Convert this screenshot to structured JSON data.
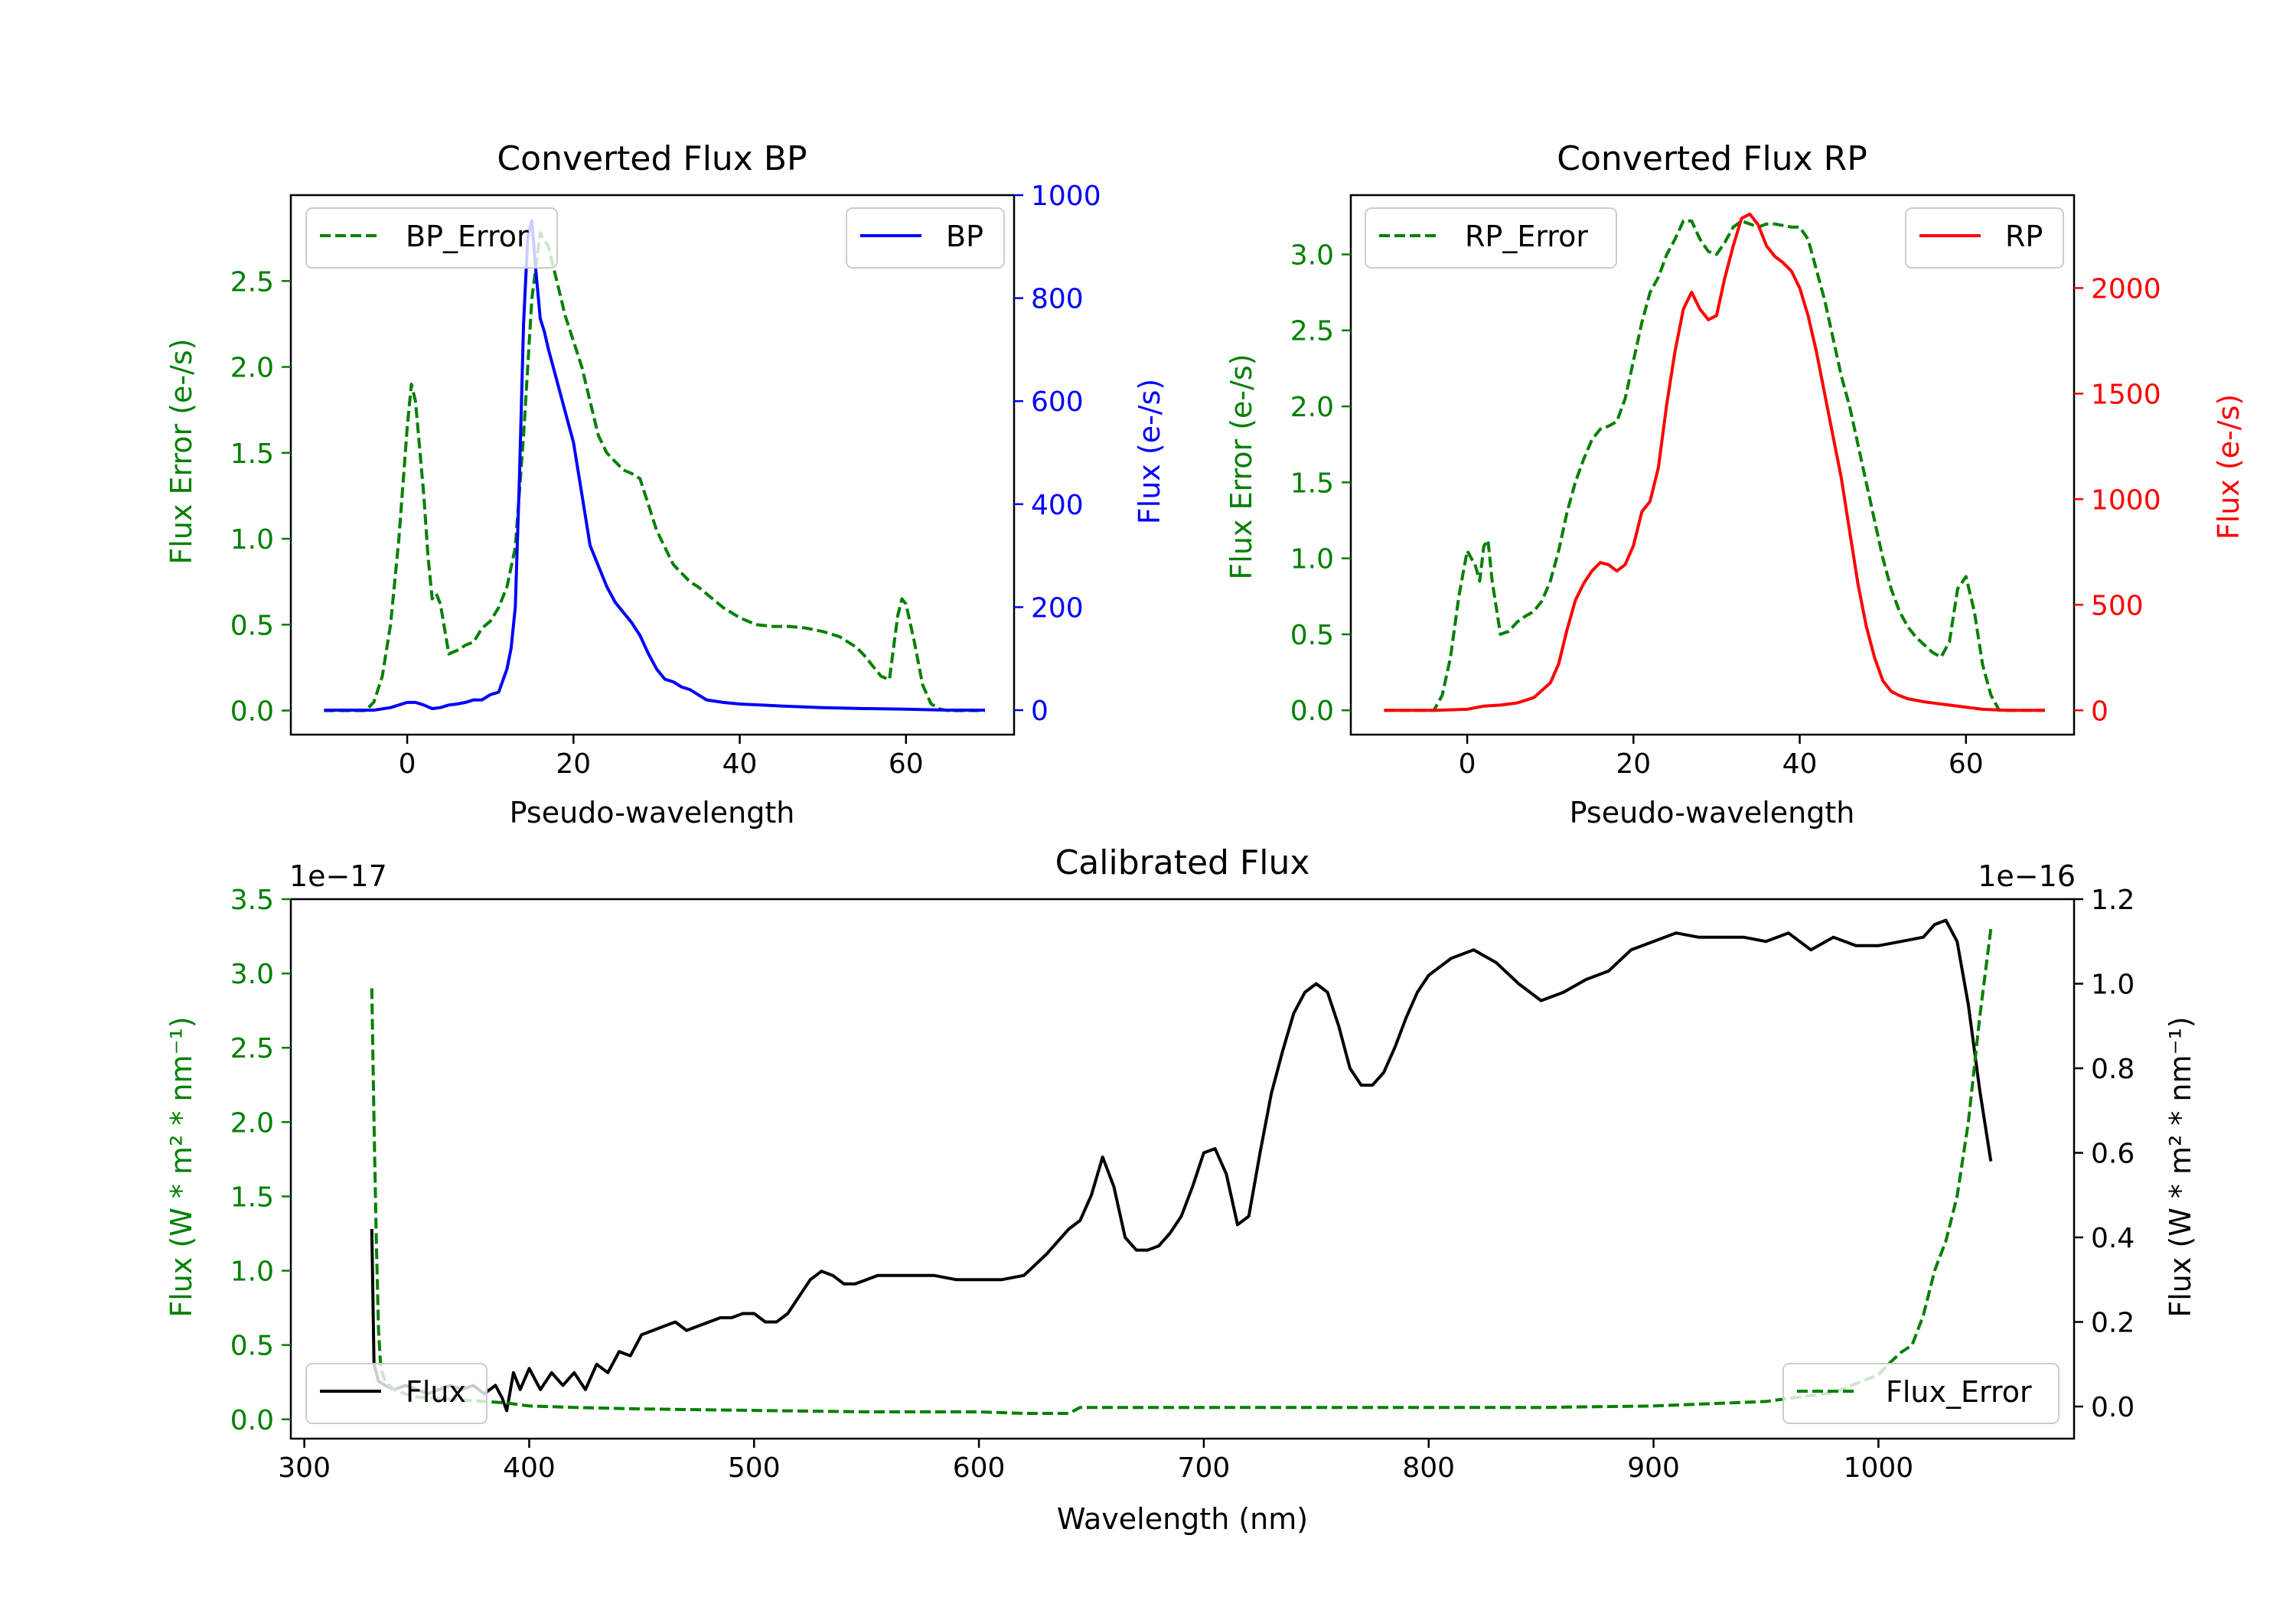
{
  "chart_data": [
    {
      "type": "line",
      "title": "Converted Flux BP",
      "xlabel": "Pseudo-wavelength",
      "ylabel_left": "Flux Error (e-/s)",
      "ylabel_right": "Flux (e-/s)",
      "xlim": [
        -14,
        73
      ],
      "ylim_left": [
        -0.14,
        3.0
      ],
      "ylim_right": [
        -47.5,
        1000
      ],
      "xticks": [
        0,
        20,
        40,
        60
      ],
      "xtick_labels": [
        "0",
        "20",
        "40",
        "60"
      ],
      "yticks_left": [
        0.0,
        0.5,
        1.0,
        1.5,
        2.0,
        2.5
      ],
      "ytick_labels_left": [
        "0.0",
        "0.5",
        "1.0",
        "1.5",
        "2.0",
        "2.5"
      ],
      "yticks_right": [
        0,
        200,
        400,
        600,
        800,
        1000
      ],
      "ytick_labels_right": [
        "0",
        "200",
        "400",
        "600",
        "800",
        "1000"
      ],
      "series": [
        {
          "name": "BP_Error",
          "axis": "left",
          "color": "#008000",
          "style": "dashed",
          "x": [
            -10,
            -5,
            -4,
            -3,
            -2,
            -1,
            0,
            0.5,
            1,
            2,
            2.5,
            3,
            3.5,
            4,
            5,
            6,
            7,
            8,
            9,
            10,
            11,
            12,
            13,
            14,
            15,
            16,
            17,
            18,
            19,
            20,
            21,
            22,
            23,
            24,
            25,
            26,
            27,
            28,
            29,
            30,
            31,
            32,
            33,
            34,
            35,
            36,
            37,
            38,
            39,
            40,
            42,
            44,
            46,
            48,
            50,
            52,
            54,
            55,
            56,
            57,
            58,
            59,
            59.5,
            60,
            61,
            62,
            63,
            64,
            65,
            69.5
          ],
          "y": [
            0.0,
            0.0,
            0.05,
            0.2,
            0.5,
            1.0,
            1.65,
            1.9,
            1.8,
            1.25,
            0.9,
            0.65,
            0.68,
            0.62,
            0.33,
            0.35,
            0.38,
            0.4,
            0.48,
            0.52,
            0.6,
            0.72,
            0.95,
            1.6,
            2.4,
            2.78,
            2.7,
            2.5,
            2.3,
            2.15,
            2.0,
            1.8,
            1.6,
            1.5,
            1.45,
            1.4,
            1.38,
            1.35,
            1.2,
            1.05,
            0.95,
            0.85,
            0.8,
            0.75,
            0.72,
            0.68,
            0.64,
            0.6,
            0.57,
            0.54,
            0.5,
            0.49,
            0.49,
            0.48,
            0.46,
            0.43,
            0.37,
            0.32,
            0.26,
            0.2,
            0.18,
            0.55,
            0.65,
            0.62,
            0.4,
            0.15,
            0.04,
            0.01,
            0.0,
            0.0
          ]
        },
        {
          "name": "BP",
          "axis": "right",
          "color": "#0000ff",
          "style": "solid",
          "x": [
            -10,
            -6,
            -4,
            -2,
            0,
            1,
            2,
            3,
            4,
            5,
            6,
            7,
            8,
            9,
            10,
            11,
            12,
            12.5,
            13,
            13.5,
            14,
            14.5,
            15,
            15.5,
            16,
            16.5,
            17,
            18,
            19,
            20,
            21,
            22,
            23,
            24,
            25,
            26,
            27,
            28,
            29,
            30,
            31,
            32,
            33,
            34,
            35,
            36,
            38,
            40,
            45,
            50,
            55,
            60,
            65,
            69.5
          ],
          "y": [
            0,
            0,
            0,
            5,
            15,
            15,
            10,
            3,
            5,
            10,
            12,
            15,
            20,
            20,
            30,
            35,
            80,
            120,
            200,
            450,
            750,
            920,
            950,
            850,
            760,
            735,
            700,
            640,
            580,
            520,
            420,
            320,
            280,
            240,
            210,
            190,
            170,
            145,
            110,
            80,
            60,
            55,
            45,
            40,
            30,
            20,
            15,
            12,
            8,
            5,
            3,
            2,
            0,
            0
          ]
        }
      ],
      "legend": [
        {
          "label": "BP_Error",
          "loc": "upper-left"
        },
        {
          "label": "BP",
          "loc": "upper-right"
        }
      ]
    },
    {
      "type": "line",
      "title": "Converted Flux RP",
      "xlabel": "Pseudo-wavelength",
      "ylabel_left": "Flux Error (e-/s)",
      "ylabel_right": "Flux (e-/s)",
      "xlim": [
        -14,
        73
      ],
      "ylim_left": [
        -0.16,
        3.39
      ],
      "ylim_right": [
        -115,
        2440
      ],
      "xticks": [
        0,
        20,
        40,
        60
      ],
      "xtick_labels": [
        "0",
        "20",
        "40",
        "60"
      ],
      "yticks_left": [
        0.0,
        0.5,
        1.0,
        1.5,
        2.0,
        2.5,
        3.0
      ],
      "ytick_labels_left": [
        "0.0",
        "0.5",
        "1.0",
        "1.5",
        "2.0",
        "2.5",
        "3.0"
      ],
      "yticks_right": [
        0,
        500,
        1000,
        1500,
        2000
      ],
      "ytick_labels_right": [
        "0",
        "500",
        "1000",
        "1500",
        "2000"
      ],
      "series": [
        {
          "name": "RP_Error",
          "axis": "left",
          "color": "#008000",
          "style": "dashed",
          "x": [
            -10,
            -4,
            -3,
            -2,
            -1,
            0,
            1,
            1.5,
            2,
            2.5,
            3,
            4,
            5,
            6,
            7,
            8,
            9,
            10,
            11,
            12,
            13,
            14,
            15,
            16,
            17,
            18,
            19,
            20,
            21,
            22,
            23,
            24,
            25,
            26,
            27,
            28,
            29,
            30,
            31,
            32,
            33,
            34,
            35,
            36,
            37,
            38,
            39,
            40,
            41,
            42,
            43,
            44,
            45,
            46,
            47,
            48,
            49,
            50,
            51,
            52,
            53,
            54,
            55,
            56,
            57,
            58,
            59,
            60,
            61,
            62,
            63,
            64,
            69.5
          ],
          "y": [
            0.0,
            0.0,
            0.1,
            0.35,
            0.75,
            1.05,
            0.95,
            0.85,
            1.08,
            1.12,
            0.85,
            0.5,
            0.52,
            0.58,
            0.62,
            0.65,
            0.72,
            0.85,
            1.05,
            1.3,
            1.5,
            1.65,
            1.78,
            1.85,
            1.87,
            1.9,
            2.05,
            2.3,
            2.55,
            2.75,
            2.85,
            3.0,
            3.1,
            3.22,
            3.22,
            3.1,
            3.02,
            3.0,
            3.08,
            3.18,
            3.22,
            3.2,
            3.18,
            3.2,
            3.2,
            3.19,
            3.18,
            3.18,
            3.1,
            2.9,
            2.7,
            2.45,
            2.2,
            2.0,
            1.75,
            1.5,
            1.25,
            1.0,
            0.8,
            0.65,
            0.55,
            0.48,
            0.43,
            0.38,
            0.35,
            0.45,
            0.8,
            0.88,
            0.65,
            0.3,
            0.1,
            0.0,
            0.0
          ]
        },
        {
          "name": "RP",
          "axis": "right",
          "color": "#ff0000",
          "style": "solid",
          "x": [
            -10,
            -4,
            0,
            2,
            4,
            6,
            8,
            10,
            11,
            12,
            13,
            14,
            15,
            16,
            17,
            18,
            19,
            20,
            21,
            22,
            23,
            24,
            25,
            26,
            27,
            28,
            29,
            30,
            31,
            32,
            33,
            34,
            35,
            36,
            37,
            38,
            39,
            40,
            41,
            42,
            43,
            44,
            45,
            46,
            47,
            48,
            49,
            50,
            51,
            52,
            53,
            55,
            58,
            60,
            62,
            65,
            69.5
          ],
          "y": [
            0,
            0,
            5,
            20,
            25,
            35,
            60,
            130,
            220,
            380,
            520,
            600,
            660,
            700,
            690,
            660,
            690,
            780,
            940,
            990,
            1150,
            1450,
            1700,
            1900,
            1980,
            1900,
            1850,
            1870,
            2050,
            2200,
            2330,
            2350,
            2300,
            2200,
            2150,
            2120,
            2080,
            2000,
            1870,
            1700,
            1500,
            1300,
            1100,
            850,
            600,
            400,
            250,
            140,
            90,
            70,
            55,
            40,
            25,
            15,
            5,
            0,
            0
          ]
        }
      ],
      "legend": [
        {
          "label": "RP_Error",
          "loc": "upper-left"
        },
        {
          "label": "RP",
          "loc": "upper-right"
        }
      ]
    },
    {
      "type": "line",
      "title": "Calibrated Flux",
      "xlabel": "Wavelength (nm)",
      "ylabel_left": "Flux (W * m² * nm⁻¹)",
      "ylabel_right": "Flux (W * m² * nm⁻¹)",
      "offset_left": "1e−17",
      "offset_right": "1e−16",
      "xlim": [
        294,
        1087
      ],
      "ylim_left": [
        -0.13,
        3.5
      ],
      "ylim_right": [
        -0.076,
        1.2
      ],
      "xticks": [
        300,
        400,
        500,
        600,
        700,
        800,
        900,
        1000
      ],
      "xtick_labels": [
        "300",
        "400",
        "500",
        "600",
        "700",
        "800",
        "900",
        "1000"
      ],
      "yticks_left": [
        0.0,
        0.5,
        1.0,
        1.5,
        2.0,
        2.5,
        3.0,
        3.5
      ],
      "ytick_labels_left": [
        "0.0",
        "0.5",
        "1.0",
        "1.5",
        "2.0",
        "2.5",
        "3.0",
        "3.5"
      ],
      "yticks_right": [
        0.0,
        0.2,
        0.4,
        0.6,
        0.8,
        1.0,
        1.2
      ],
      "ytick_labels_right": [
        "0.0",
        "0.2",
        "0.4",
        "0.6",
        "0.8",
        "1.0",
        "1.2"
      ],
      "series": [
        {
          "name": "Flux",
          "axis": "right",
          "color": "#000000",
          "style": "solid",
          "x": [
            330,
            331,
            333,
            336,
            340,
            345,
            350,
            355,
            360,
            365,
            370,
            375,
            380,
            385,
            388,
            390,
            393,
            396,
            400,
            405,
            410,
            415,
            420,
            425,
            430,
            435,
            440,
            445,
            450,
            455,
            460,
            465,
            470,
            475,
            480,
            485,
            490,
            495,
            500,
            505,
            510,
            515,
            520,
            525,
            530,
            535,
            540,
            545,
            550,
            555,
            560,
            570,
            580,
            590,
            600,
            610,
            620,
            630,
            640,
            645,
            650,
            655,
            660,
            665,
            670,
            675,
            680,
            685,
            690,
            695,
            700,
            705,
            710,
            715,
            720,
            725,
            730,
            735,
            740,
            745,
            750,
            755,
            760,
            765,
            770,
            775,
            780,
            785,
            790,
            795,
            800,
            810,
            820,
            830,
            840,
            850,
            860,
            870,
            880,
            890,
            900,
            910,
            920,
            930,
            940,
            950,
            960,
            970,
            980,
            990,
            1000,
            1010,
            1020,
            1025,
            1030,
            1035,
            1040,
            1045,
            1050
          ],
          "y": [
            0.42,
            0.1,
            0.06,
            0.05,
            0.04,
            0.05,
            0.04,
            0.03,
            0.04,
            0.05,
            0.04,
            0.05,
            0.03,
            0.05,
            0.02,
            -0.01,
            0.08,
            0.04,
            0.09,
            0.04,
            0.08,
            0.05,
            0.08,
            0.04,
            0.1,
            0.08,
            0.13,
            0.12,
            0.17,
            0.18,
            0.19,
            0.2,
            0.18,
            0.19,
            0.2,
            0.21,
            0.21,
            0.22,
            0.22,
            0.2,
            0.2,
            0.22,
            0.26,
            0.3,
            0.32,
            0.31,
            0.29,
            0.29,
            0.3,
            0.31,
            0.31,
            0.31,
            0.31,
            0.3,
            0.3,
            0.3,
            0.31,
            0.36,
            0.42,
            0.44,
            0.5,
            0.59,
            0.52,
            0.4,
            0.37,
            0.37,
            0.38,
            0.41,
            0.45,
            0.52,
            0.6,
            0.61,
            0.55,
            0.43,
            0.45,
            0.6,
            0.74,
            0.84,
            0.93,
            0.98,
            1.0,
            0.98,
            0.9,
            0.8,
            0.76,
            0.76,
            0.79,
            0.85,
            0.92,
            0.98,
            1.02,
            1.06,
            1.08,
            1.05,
            1.0,
            0.96,
            0.98,
            1.01,
            1.03,
            1.08,
            1.1,
            1.12,
            1.11,
            1.11,
            1.11,
            1.1,
            1.12,
            1.08,
            1.11,
            1.09,
            1.09,
            1.1,
            1.11,
            1.14,
            1.15,
            1.1,
            0.95,
            0.75,
            0.58
          ]
        },
        {
          "name": "Flux_Error",
          "axis": "left",
          "color": "#008000",
          "style": "dashed",
          "x": [
            330,
            331,
            332,
            333,
            334,
            336,
            340,
            345,
            350,
            360,
            370,
            380,
            390,
            400,
            420,
            450,
            500,
            550,
            600,
            620,
            640,
            645,
            650,
            700,
            750,
            800,
            850,
            900,
            950,
            980,
            1000,
            1005,
            1010,
            1015,
            1020,
            1025,
            1030,
            1035,
            1040,
            1045,
            1050
          ],
          "y": [
            2.9,
            2.0,
            1.2,
            0.6,
            0.35,
            0.25,
            0.2,
            0.17,
            0.15,
            0.14,
            0.13,
            0.12,
            0.11,
            0.09,
            0.08,
            0.07,
            0.06,
            0.05,
            0.05,
            0.04,
            0.04,
            0.08,
            0.08,
            0.08,
            0.08,
            0.08,
            0.08,
            0.09,
            0.12,
            0.18,
            0.3,
            0.38,
            0.45,
            0.5,
            0.7,
            1.0,
            1.2,
            1.5,
            2.0,
            2.7,
            3.3
          ]
        }
      ],
      "legend": [
        {
          "label": "Flux",
          "loc": "lower-left"
        },
        {
          "label": "Flux_Error",
          "loc": "lower-right"
        }
      ]
    }
  ]
}
